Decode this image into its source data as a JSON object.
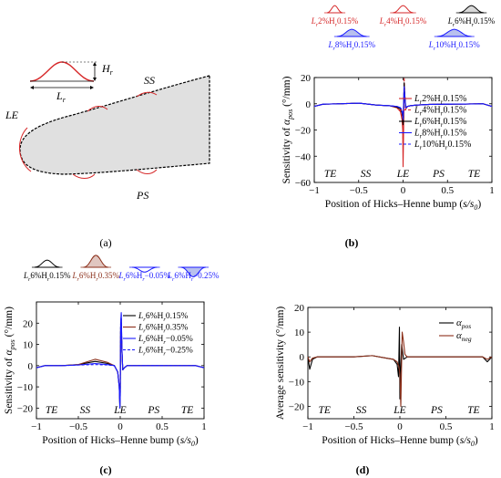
{
  "panels": {
    "a": {
      "label": "(a)",
      "Hr": "H",
      "Hr_sub": "r",
      "Lr": "L",
      "Lr_sub": "r",
      "SS": "SS",
      "LE": "LE",
      "PS": "PS"
    },
    "b": {
      "label": "(b)"
    },
    "c": {
      "label": "(c)"
    },
    "d": {
      "label": "(d)"
    }
  },
  "colors": {
    "red": "#d62728",
    "black": "#000000",
    "blue": "#1a1aff",
    "brown": "#8b2f1a",
    "airfoil_fill": "#e0e0e0",
    "sketch_red": "#e8b0b0",
    "sketch_blue": "#b8c0ee"
  },
  "chart_data": [
    {
      "id": "b",
      "type": "line",
      "xlabel_parts": [
        "Position of Hicks–Henne bump (",
        "s/s",
        "0",
        ")"
      ],
      "ylabel_parts": [
        "Sensitivity of ",
        "α",
        "pos",
        " (°/mm)"
      ],
      "xlim": [
        -1,
        1
      ],
      "ylim": [
        -60,
        20
      ],
      "xticks": [
        -1,
        -0.5,
        0,
        0.5,
        1
      ],
      "xtick_labels": [
        "−1",
        "−0.5",
        "0",
        "0.5",
        "1"
      ],
      "yticks": [
        -60,
        -40,
        -20,
        0,
        20
      ],
      "ytick_labels": [
        "−60",
        "−40",
        "−20",
        "0",
        "20"
      ],
      "region_labels": [
        {
          "x": -0.82,
          "text": "TE"
        },
        {
          "x": -0.42,
          "text": "SS"
        },
        {
          "x": 0.0,
          "text": "LE"
        },
        {
          "x": 0.4,
          "text": "PS"
        },
        {
          "x": 0.8,
          "text": "TE"
        }
      ],
      "legend_position": "right",
      "series": [
        {
          "name": "L_r 2% H_r 0.15%",
          "label_L": "L",
          "label_sub1": "r",
          "label_mid": "2%H",
          "label_sub2": "r",
          "label_end": "0.15%",
          "color": "#d62728",
          "dash": "",
          "x": [
            -1,
            -0.9,
            -0.7,
            -0.5,
            -0.3,
            -0.15,
            -0.07,
            -0.03,
            -0.012,
            -0.004,
            0.0,
            0.005,
            0.012,
            0.02,
            0.03,
            0.05,
            0.08,
            0.15,
            0.3,
            0.5,
            0.7,
            0.9,
            1
          ],
          "y": [
            -2,
            -0.3,
            0,
            0.5,
            -1,
            -1.5,
            -3,
            -6,
            -12,
            -20,
            -48,
            -25,
            15,
            5,
            -4,
            -2,
            -1.5,
            -1,
            -0.5,
            -0.3,
            -0.2,
            0,
            -2
          ]
        },
        {
          "name": "L_r 4% H_r 0.15%",
          "label_L": "L",
          "label_sub1": "r",
          "label_mid": "4%H",
          "label_sub2": "r",
          "label_end": "0.15%",
          "color": "#d62728",
          "dash": "3,2",
          "x": [
            -1,
            -0.9,
            -0.7,
            -0.5,
            -0.3,
            -0.15,
            -0.07,
            -0.03,
            -0.012,
            -0.004,
            0.0,
            0.005,
            0.012,
            0.02,
            0.03,
            0.05,
            0.08,
            0.15,
            0.3,
            0.5,
            0.7,
            0.9,
            1
          ],
          "y": [
            -2,
            -0.3,
            0,
            0.5,
            -1,
            -1.5,
            -3,
            -5,
            -10,
            -16,
            -30,
            -12,
            20,
            7,
            -4,
            -2,
            -1.5,
            -1,
            -0.5,
            -0.3,
            -0.2,
            0,
            -2
          ]
        },
        {
          "name": "L_r 6% H_r 0.15%",
          "label_L": "L",
          "label_sub1": "r",
          "label_mid": "6%H",
          "label_sub2": "r",
          "label_end": "0.15%",
          "color": "#000000",
          "dash": "",
          "x": [
            -1,
            -0.9,
            -0.7,
            -0.5,
            -0.3,
            -0.15,
            -0.07,
            -0.03,
            -0.012,
            -0.004,
            0.0,
            0.005,
            0.012,
            0.02,
            0.03,
            0.05,
            0.08,
            0.15,
            0.3,
            0.5,
            0.7,
            0.9,
            1
          ],
          "y": [
            -2,
            -0.3,
            0,
            0.5,
            -1,
            -1.5,
            -2.5,
            -4,
            -7,
            -10,
            -16,
            -5,
            16,
            6,
            -3,
            -2,
            -1.5,
            -1,
            -0.5,
            -0.3,
            -0.2,
            0,
            -2
          ]
        },
        {
          "name": "L_r 8% H_r 0.15%",
          "label_L": "L",
          "label_sub1": "r",
          "label_mid": "8%H",
          "label_sub2": "r",
          "label_end": "0.15%",
          "color": "#1a1aff",
          "dash": "",
          "x": [
            -1,
            -0.9,
            -0.7,
            -0.5,
            -0.3,
            -0.15,
            -0.07,
            -0.03,
            -0.012,
            -0.004,
            0.0,
            0.005,
            0.012,
            0.02,
            0.03,
            0.05,
            0.08,
            0.15,
            0.3,
            0.5,
            0.7,
            0.9,
            1
          ],
          "y": [
            -2,
            -0.3,
            0,
            0.5,
            -1,
            -1.5,
            -2,
            -3,
            -6,
            -8,
            -12,
            -3,
            13,
            5,
            -3,
            -2,
            -1.5,
            -1,
            -0.5,
            -0.3,
            -0.2,
            0,
            -2
          ]
        },
        {
          "name": "L_r 10% H_r 0.15%",
          "label_L": "L",
          "label_sub1": "r",
          "label_mid": "10%H",
          "label_sub2": "r",
          "label_end": "0.15%",
          "color": "#1a1aff",
          "dash": "3,2",
          "x": [
            -1,
            -0.9,
            -0.7,
            -0.5,
            -0.3,
            -0.15,
            -0.07,
            -0.03,
            -0.012,
            -0.004,
            0.0,
            0.005,
            0.012,
            0.02,
            0.03,
            0.05,
            0.08,
            0.15,
            0.3,
            0.5,
            0.7,
            0.9,
            1
          ],
          "y": [
            -2,
            -0.3,
            0,
            0.5,
            -1,
            -1.5,
            -2,
            -3,
            -5,
            -7,
            -10,
            -2,
            11,
            4,
            -3,
            -2,
            -1.5,
            -1,
            -0.5,
            -0.3,
            -0.2,
            0,
            -2
          ]
        }
      ],
      "bump_keys": [
        {
          "L": "L",
          "sub1": "r",
          "mid": "2%H",
          "sub2": "r",
          "end": "0.15%",
          "color": "#d62728",
          "width": 0.02,
          "height": 0.15,
          "fill": "none"
        },
        {
          "L": "L",
          "sub1": "r",
          "mid": "4%H",
          "sub2": "r",
          "end": "0.15%",
          "color": "#d62728",
          "width": 0.04,
          "height": 0.15,
          "fill": "none"
        },
        {
          "L": "L",
          "sub1": "r",
          "mid": "6%H",
          "sub2": "r",
          "end": "0.15%",
          "color": "#000000",
          "width": 0.06,
          "height": 0.15,
          "fill": "#d8d8d8"
        },
        {
          "L": "L",
          "sub1": "r",
          "mid": "8%H",
          "sub2": "r",
          "end": "0.15%",
          "color": "#1a1aff",
          "width": 0.08,
          "height": 0.15,
          "fill": "#b8c0ee"
        },
        {
          "L": "L",
          "sub1": "r",
          "mid": "10%H",
          "sub2": "r",
          "end": "0.15%",
          "color": "#1a1aff",
          "width": 0.1,
          "height": 0.15,
          "fill": "#b8c0ee"
        }
      ]
    },
    {
      "id": "c",
      "type": "line",
      "xlabel_parts": [
        "Position of Hicks–Henne bump (",
        "s/s",
        "0",
        ")"
      ],
      "ylabel_parts": [
        "Sensitivity of ",
        "α",
        "pos",
        " (°/mm)"
      ],
      "xlim": [
        -1,
        1
      ],
      "ylim": [
        -25,
        30
      ],
      "xticks": [
        -1,
        -0.5,
        0,
        0.5,
        1
      ],
      "xtick_labels": [
        "−1",
        "−0.5",
        "0",
        "0.5",
        "1"
      ],
      "yticks": [
        -20,
        -10,
        0,
        10,
        20
      ],
      "ytick_labels": [
        "−20",
        "−10",
        "0",
        "10",
        "20"
      ],
      "region_labels": [
        {
          "x": -0.82,
          "text": "TE"
        },
        {
          "x": -0.42,
          "text": "SS"
        },
        {
          "x": 0.0,
          "text": "LE"
        },
        {
          "x": 0.4,
          "text": "PS"
        },
        {
          "x": 0.8,
          "text": "TE"
        }
      ],
      "legend_position": "top-right",
      "series": [
        {
          "name": "L_r 6% H_r 0.15%",
          "label_L": "L",
          "label_sub1": "r",
          "label_mid": "6%H",
          "label_sub2": "r",
          "label_end": "0.15%",
          "color": "#000000",
          "dash": "",
          "x": [
            -1,
            -0.9,
            -0.7,
            -0.5,
            -0.3,
            -0.15,
            -0.07,
            -0.03,
            -0.012,
            -0.004,
            0.0,
            0.005,
            0.012,
            0.02,
            0.03,
            0.05,
            0.08,
            0.15,
            0.3,
            0.5,
            0.7,
            0.9,
            1
          ],
          "y": [
            -1,
            0,
            0,
            0.5,
            2,
            1,
            0,
            -3,
            -10,
            -20,
            -14,
            18,
            22,
            8,
            -2,
            -1,
            0,
            0,
            0,
            0,
            0,
            0,
            -1
          ]
        },
        {
          "name": "L_r 6% H_r 0.35%",
          "label_L": "L",
          "label_sub1": "r",
          "label_mid": "6%H",
          "label_sub2": "r",
          "label_end": "0.35%",
          "color": "#8b2f1a",
          "dash": "",
          "x": [
            -1,
            -0.9,
            -0.7,
            -0.5,
            -0.3,
            -0.15,
            -0.07,
            -0.03,
            -0.012,
            -0.004,
            0.0,
            0.005,
            0.012,
            0.02,
            0.03,
            0.05,
            0.08,
            0.15,
            0.3,
            0.5,
            0.7,
            0.9,
            1
          ],
          "y": [
            -1,
            0,
            0,
            0.5,
            3,
            1.5,
            0,
            -3,
            -9,
            -18,
            -12,
            16,
            20,
            7,
            -2,
            -1,
            0,
            0,
            0,
            0,
            0,
            0,
            -1
          ]
        },
        {
          "name": "L_r 6% H_r −0.05%",
          "label_L": "L",
          "label_sub1": "r",
          "label_mid": "6%H",
          "label_sub2": "r",
          "label_end": "−0.05%",
          "color": "#1a1aff",
          "dash": "",
          "x": [
            -1,
            -0.9,
            -0.7,
            -0.5,
            -0.3,
            -0.15,
            -0.07,
            -0.03,
            -0.012,
            -0.004,
            0.0,
            0.005,
            0.012,
            0.02,
            0.03,
            0.05,
            0.08,
            0.15,
            0.3,
            0.5,
            0.7,
            0.9,
            1
          ],
          "y": [
            -1,
            0,
            0,
            0.3,
            1,
            0.5,
            0,
            -3,
            -10,
            -20,
            -14,
            20,
            25,
            8,
            -2,
            -1,
            0,
            0,
            0,
            0,
            0,
            0,
            -1
          ]
        },
        {
          "name": "L_r 6% H_r −0.25%",
          "label_L": "L",
          "label_sub1": "r",
          "label_mid": "6%H",
          "label_sub2": "r",
          "label_end": "−0.25%",
          "color": "#1a1aff",
          "dash": "3,2",
          "x": [
            -1,
            -0.9,
            -0.7,
            -0.5,
            -0.3,
            -0.15,
            -0.07,
            -0.03,
            -0.012,
            -0.004,
            0.0,
            0.005,
            0.012,
            0.02,
            0.03,
            0.05,
            0.08,
            0.15,
            0.3,
            0.5,
            0.7,
            0.9,
            1
          ],
          "y": [
            -1,
            0,
            0,
            0.3,
            0.5,
            0.3,
            0,
            -3,
            -10,
            -19,
            -13,
            19,
            24,
            8,
            -2,
            -1,
            0,
            0,
            0,
            0,
            0,
            0,
            -1
          ]
        }
      ],
      "bump_keys": [
        {
          "L": "L",
          "sub1": "r",
          "mid": "6%H",
          "sub2": "r",
          "end": "0.15%",
          "color": "#000000",
          "width": 0.06,
          "height": 0.15,
          "fill": "none"
        },
        {
          "L": "L",
          "sub1": "r",
          "mid": "6%H",
          "sub2": "r",
          "end": "0.35%",
          "color": "#8b2f1a",
          "width": 0.06,
          "height": 0.35,
          "fill": "#e0c6c0"
        },
        {
          "L": "L",
          "sub1": "r",
          "mid": "6%H",
          "sub2": "r",
          "end": "−0.05%",
          "color": "#1a1aff",
          "width": 0.06,
          "height": -0.05,
          "fill": "none"
        },
        {
          "L": "L",
          "sub1": "r",
          "mid": "6%H",
          "sub2": "r",
          "end": "−0.25%",
          "color": "#1a1aff",
          "width": 0.06,
          "height": -0.25,
          "fill": "#b8c0ee"
        }
      ]
    },
    {
      "id": "d",
      "type": "line",
      "xlabel_parts": [
        "Position of Hicks–Henne bump (",
        "s/s",
        "0",
        ")"
      ],
      "ylabel_parts": [
        "Average sensitivity (°/mm)"
      ],
      "xlim": [
        -1,
        1
      ],
      "ylim": [
        -25,
        20
      ],
      "xticks": [
        -1,
        -0.5,
        0,
        0.5,
        1
      ],
      "xtick_labels": [
        "−1",
        "−0.5",
        "0",
        "0.5",
        "1"
      ],
      "yticks": [
        -20,
        -10,
        0,
        10,
        20
      ],
      "ytick_labels": [
        "−20",
        "−10",
        "0",
        "10",
        "20"
      ],
      "region_labels": [
        {
          "x": -0.82,
          "text": "TE"
        },
        {
          "x": -0.42,
          "text": "SS"
        },
        {
          "x": 0.0,
          "text": "LE"
        },
        {
          "x": 0.4,
          "text": "PS"
        },
        {
          "x": 0.8,
          "text": "TE"
        }
      ],
      "legend_position": "top-right",
      "series": [
        {
          "name": "α pos",
          "label_L": "α",
          "label_sub1": "pos",
          "label_mid": "",
          "label_sub2": "",
          "label_end": "",
          "color": "#000000",
          "dash": "",
          "x": [
            -1,
            -0.98,
            -0.95,
            -0.9,
            -0.7,
            -0.5,
            -0.3,
            -0.15,
            -0.07,
            -0.03,
            -0.015,
            -0.005,
            0.0,
            0.008,
            0.02,
            0.04,
            0.08,
            0.15,
            0.3,
            0.5,
            0.7,
            0.9,
            0.95,
            1
          ],
          "y": [
            0,
            -5,
            -1,
            0,
            0,
            0,
            0.5,
            -0.5,
            -1,
            -3,
            -8,
            12,
            -17,
            -5,
            5,
            -1,
            0,
            0,
            0,
            0,
            0,
            0,
            -2,
            0
          ]
        },
        {
          "name": "α neg",
          "label_L": "α",
          "label_sub1": "neg",
          "label_mid": "",
          "label_sub2": "",
          "label_end": "",
          "color": "#8b2f1a",
          "dash": "",
          "x": [
            -1,
            -0.98,
            -0.95,
            -0.9,
            -0.7,
            -0.5,
            -0.3,
            -0.15,
            -0.07,
            -0.03,
            -0.01,
            0.0,
            0.01,
            0.025,
            0.04,
            0.055,
            0.08,
            0.15,
            0.3,
            0.5,
            0.7,
            0.9,
            0.95,
            1
          ],
          "y": [
            0,
            -2,
            -0.5,
            0,
            0,
            0,
            0.5,
            -0.5,
            -1,
            -2,
            -4,
            -7,
            -20,
            10,
            6,
            1,
            0,
            0,
            0,
            0,
            0,
            0,
            -1,
            0
          ]
        }
      ]
    }
  ]
}
